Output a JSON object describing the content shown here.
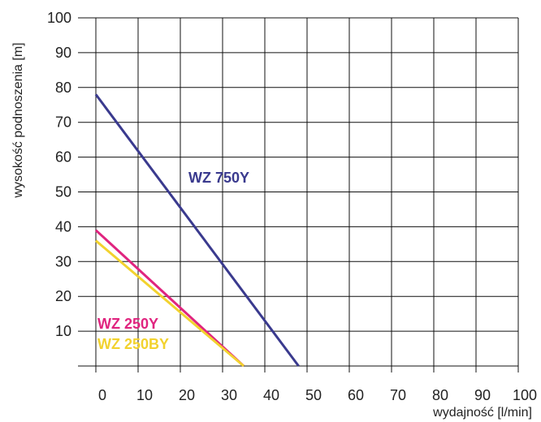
{
  "chart_data": {
    "type": "line",
    "xlabel": "wydajność [l/min]",
    "ylabel": "wysokość podnoszenia [m]",
    "xlim": [
      0,
      100
    ],
    "ylim": [
      0,
      100
    ],
    "x_ticks": [
      "0",
      "10",
      "20",
      "30",
      "40",
      "50",
      "60",
      "70",
      "80",
      "90",
      "100"
    ],
    "y_ticks": [
      "10",
      "20",
      "30",
      "40",
      "50",
      "60",
      "70",
      "80",
      "90",
      "100"
    ],
    "grid": true,
    "series": [
      {
        "name": "WZ 750Y",
        "color": "#3a3a8e",
        "x": [
          0,
          48
        ],
        "y": [
          78,
          0
        ]
      },
      {
        "name": "WZ 250Y",
        "color": "#e0247f",
        "x": [
          0,
          35
        ],
        "y": [
          39,
          0
        ]
      },
      {
        "name": "WZ 250BY",
        "color": "#f2d22e",
        "x": [
          0,
          35
        ],
        "y": [
          36,
          0
        ]
      }
    ]
  }
}
